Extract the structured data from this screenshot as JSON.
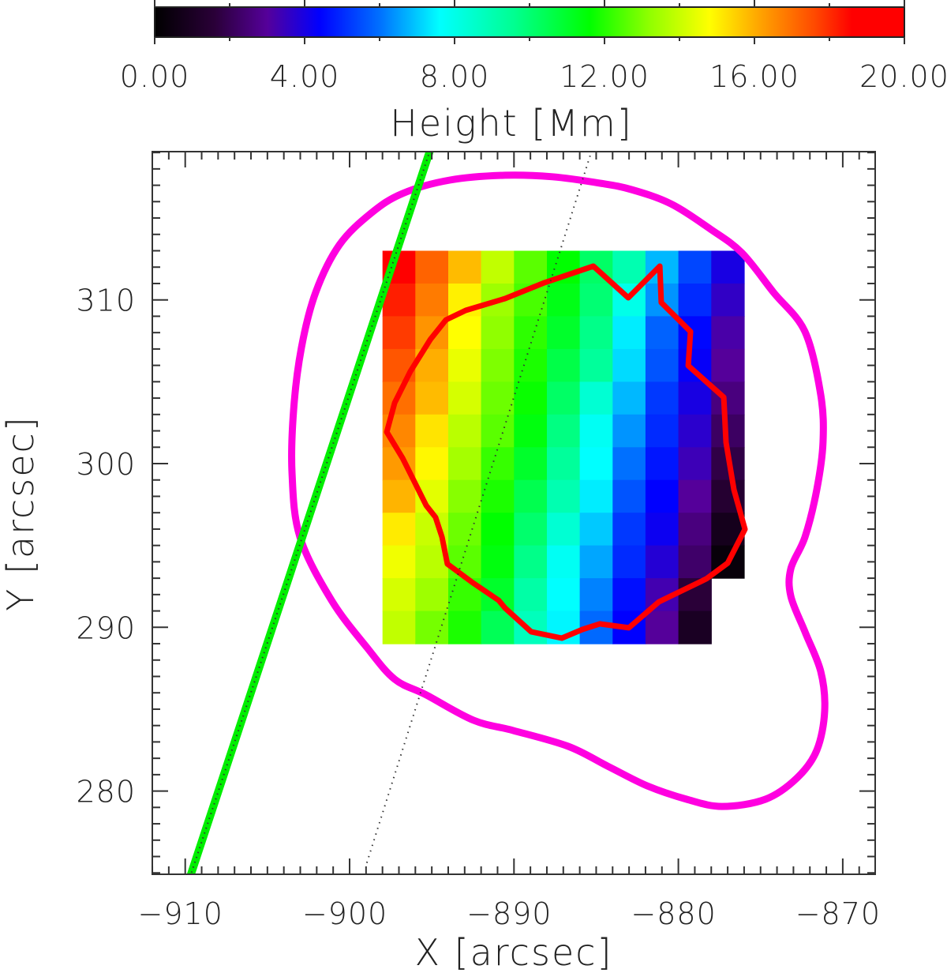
{
  "colorbar": {
    "title": "Height [Mm]",
    "min": 0,
    "max": 20,
    "tick_labels": [
      "0.00",
      "4.00",
      "8.00",
      "12.00",
      "16.00",
      "20.00"
    ],
    "tick_values": [
      0,
      4,
      8,
      12,
      16,
      20
    ],
    "minor_step": 2
  },
  "chart_data": {
    "type": "heatmap",
    "title": "",
    "xlabel": "X [arcsec]",
    "ylabel": "Y [arcsec]",
    "xlim": [
      -912,
      -868
    ],
    "ylim": [
      274.9,
      319.1
    ],
    "x_ticks": [
      -910,
      -900,
      -890,
      -880,
      -870
    ],
    "x_tick_labels": [
      "−910",
      "−900",
      "−890",
      "−880",
      "−870"
    ],
    "y_ticks": [
      280,
      290,
      300,
      310
    ],
    "y_tick_labels": [
      "280",
      "290",
      "300",
      "310"
    ],
    "grid": false,
    "colormap": "rainbow (black-purple-blue-cyan-green-yellow-red)",
    "colorbar_label": "Height [Mm]",
    "colorbar_range": [
      0,
      20
    ],
    "heatmap": {
      "x0": -898,
      "y_top": 313,
      "cell_size": 2,
      "columns": 11,
      "rows": 12,
      "values": [
        [
          18.8,
          17.2,
          15.8,
          13.9,
          12.6,
          11.6,
          10.2,
          9.0,
          6.8,
          5.4,
          4.0
        ],
        [
          18.2,
          16.8,
          15.0,
          13.4,
          12.4,
          11.3,
          10.0,
          8.0,
          6.4,
          5.0,
          3.6
        ],
        [
          17.8,
          16.4,
          14.8,
          13.2,
          12.1,
          11.0,
          9.7,
          7.4,
          5.8,
          4.5,
          3.2
        ],
        [
          17.4,
          16.0,
          14.5,
          13.0,
          11.9,
          10.6,
          9.4,
          7.2,
          5.6,
          4.3,
          3.0
        ],
        [
          17.0,
          15.8,
          14.2,
          12.8,
          11.7,
          10.2,
          8.4,
          6.8,
          5.2,
          4.0,
          2.6
        ],
        [
          16.6,
          15.2,
          13.8,
          12.6,
          11.4,
          9.8,
          7.8,
          6.4,
          5.0,
          3.7,
          2.2
        ],
        [
          16.3,
          14.9,
          13.5,
          12.2,
          11.0,
          9.4,
          7.6,
          6.0,
          4.7,
          3.4,
          1.8
        ],
        [
          15.9,
          14.4,
          13.1,
          11.9,
          10.5,
          9.0,
          7.4,
          5.6,
          4.4,
          3.0,
          1.4
        ],
        [
          15.1,
          14.0,
          12.8,
          11.6,
          10.1,
          8.4,
          7.0,
          5.2,
          4.2,
          2.6,
          0.8
        ],
        [
          14.6,
          13.8,
          12.6,
          11.4,
          9.7,
          7.8,
          6.6,
          5.0,
          3.8,
          2.3,
          0.3
        ],
        [
          14.2,
          13.4,
          12.2,
          11.0,
          9.2,
          7.6,
          6.2,
          4.6,
          3.3,
          1.6,
          null
        ],
        [
          13.9,
          12.9,
          11.9,
          10.4,
          8.8,
          7.5,
          5.9,
          4.4,
          3.0,
          1.0,
          null
        ]
      ]
    },
    "series": [
      {
        "name": "red-contour",
        "type": "closed-line",
        "color": "#ff0000",
        "points": [
          [
            -897.74,
            301.93
          ],
          [
            -897.26,
            303.71
          ],
          [
            -896.3,
            305.64
          ],
          [
            -895.1,
            307.57
          ],
          [
            -894.14,
            308.78
          ],
          [
            -892.94,
            309.36
          ],
          [
            -890.54,
            310.08
          ],
          [
            -888.14,
            311.05
          ],
          [
            -885.17,
            312.06
          ],
          [
            -883.05,
            310.13
          ],
          [
            -881.13,
            312.06
          ],
          [
            -881.04,
            309.84
          ],
          [
            -879.26,
            308.06
          ],
          [
            -879.4,
            305.98
          ],
          [
            -877.24,
            304.05
          ],
          [
            -877.1,
            301.3
          ],
          [
            -876.62,
            298.41
          ],
          [
            -875.95,
            295.99
          ],
          [
            -877.0,
            293.92
          ],
          [
            -878.3,
            292.96
          ],
          [
            -879.98,
            292.14
          ],
          [
            -881.18,
            291.56
          ],
          [
            -883.01,
            289.97
          ],
          [
            -884.78,
            290.21
          ],
          [
            -885.84,
            289.87
          ],
          [
            -887.09,
            289.34
          ],
          [
            -888.96,
            289.73
          ],
          [
            -890.54,
            291.17
          ],
          [
            -890.93,
            291.65
          ],
          [
            -892.56,
            292.76
          ],
          [
            -894.05,
            293.87
          ],
          [
            -894.38,
            295.51
          ],
          [
            -894.77,
            296.72
          ],
          [
            -895.34,
            297.44
          ],
          [
            -896.06,
            298.89
          ],
          [
            -896.78,
            300.34
          ]
        ]
      },
      {
        "name": "magenta-contour",
        "type": "closed-curve",
        "color": "#ff00e0",
        "points": [
          [
            -890.54,
            317.61
          ],
          [
            -887.66,
            317.52
          ],
          [
            -884.78,
            317.13
          ],
          [
            -882.86,
            316.74
          ],
          [
            -880.46,
            315.87
          ],
          [
            -878.06,
            314.33
          ],
          [
            -876.14,
            312.88
          ],
          [
            -874.22,
            310.47
          ],
          [
            -872.3,
            308.06
          ],
          [
            -871.34,
            304.2
          ],
          [
            -871.2,
            301.3
          ],
          [
            -871.58,
            298.41
          ],
          [
            -872.3,
            295.51
          ],
          [
            -873.16,
            293.58
          ],
          [
            -873.16,
            291.9
          ],
          [
            -872.3,
            289.73
          ],
          [
            -871.34,
            287.31
          ],
          [
            -871.1,
            284.9
          ],
          [
            -871.58,
            282.49
          ],
          [
            -872.78,
            280.8
          ],
          [
            -874.7,
            279.5
          ],
          [
            -877.34,
            279.06
          ],
          [
            -879.5,
            279.5
          ],
          [
            -881.9,
            280.32
          ],
          [
            -884.3,
            281.52
          ],
          [
            -886.7,
            282.73
          ],
          [
            -890.06,
            283.7
          ],
          [
            -892.46,
            284.32
          ],
          [
            -895.34,
            285.87
          ],
          [
            -897.26,
            286.83
          ],
          [
            -898.94,
            288.76
          ],
          [
            -901.1,
            291.65
          ],
          [
            -903.02,
            295.51
          ],
          [
            -903.5,
            299.37
          ],
          [
            -903.41,
            303.23
          ],
          [
            -902.93,
            307.09
          ],
          [
            -902.06,
            310.47
          ],
          [
            -900.62,
            313.36
          ],
          [
            -898.7,
            315.29
          ],
          [
            -896.78,
            316.5
          ],
          [
            -893.9,
            317.32
          ]
        ]
      },
      {
        "name": "green-line",
        "type": "line",
        "color": "#00ee00",
        "points": [
          [
            -895.1,
            319.15
          ],
          [
            -909.65,
            274.92
          ]
        ]
      },
      {
        "name": "dotted-line",
        "type": "dotted-line",
        "color": "#333333",
        "points": [
          [
            -885.26,
            319.15
          ],
          [
            -898.99,
            275.49
          ]
        ]
      }
    ]
  }
}
